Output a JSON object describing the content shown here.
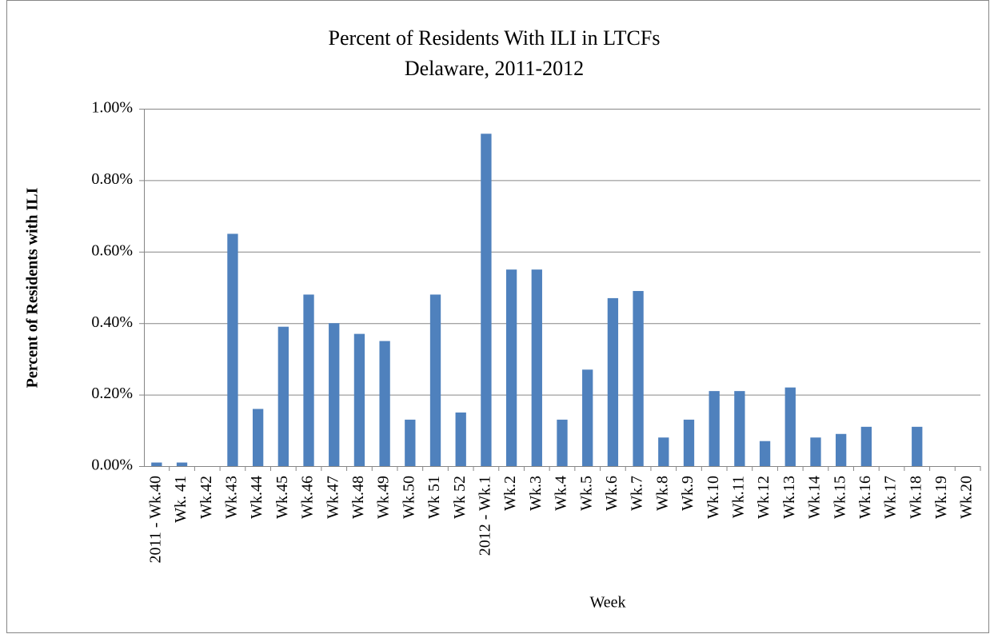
{
  "chart_data": {
    "type": "bar",
    "title": "Percent of Residents With ILI in LTCFs",
    "subtitle": "Delaware, 2011-2012",
    "x_label": "Week",
    "y_label": "Percent of Residents  with ILI",
    "categories": [
      "2011 - Wk.40",
      "Wk. 41",
      "Wk.42",
      "Wk.43",
      "Wk.44",
      "Wk.45",
      "Wk.46",
      "Wk.47",
      "Wk.48",
      "Wk.49",
      "Wk.50",
      "Wk 51",
      "Wk 52",
      "2012 - Wk.1",
      "Wk.2",
      "Wk.3",
      "Wk.4",
      "Wk.5",
      "Wk.6",
      "Wk.7",
      "Wk.8",
      "Wk.9",
      "Wk.10",
      "Wk.11",
      "Wk.12",
      "Wk.13",
      "Wk.14",
      "Wk.15",
      "Wk.16",
      "Wk.17",
      "Wk.18",
      "Wk.19",
      "Wk.20"
    ],
    "values": [
      0.01,
      0.01,
      0,
      0.65,
      0.16,
      0.39,
      0.48,
      0.4,
      0.37,
      0.35,
      0.13,
      0.48,
      0.15,
      0.93,
      0.55,
      0.55,
      0.13,
      0.27,
      0.47,
      0.49,
      0.08,
      0.13,
      0.21,
      0.21,
      0.07,
      0.22,
      0.08,
      0.09,
      0.11,
      0,
      0.11,
      0,
      0
    ],
    "color": "#4f81bd",
    "ylim": [
      0,
      1
    ],
    "yticks": [
      {
        "value": 0,
        "label": "0.00%"
      },
      {
        "value": 0.2,
        "label": "0.20%"
      },
      {
        "value": 0.4,
        "label": "0.40%"
      },
      {
        "value": 0.6,
        "label": "0.60%"
      },
      {
        "value": 0.8,
        "label": "0.80%"
      },
      {
        "value": 1,
        "label": "1.00%"
      }
    ],
    "grid": true
  }
}
